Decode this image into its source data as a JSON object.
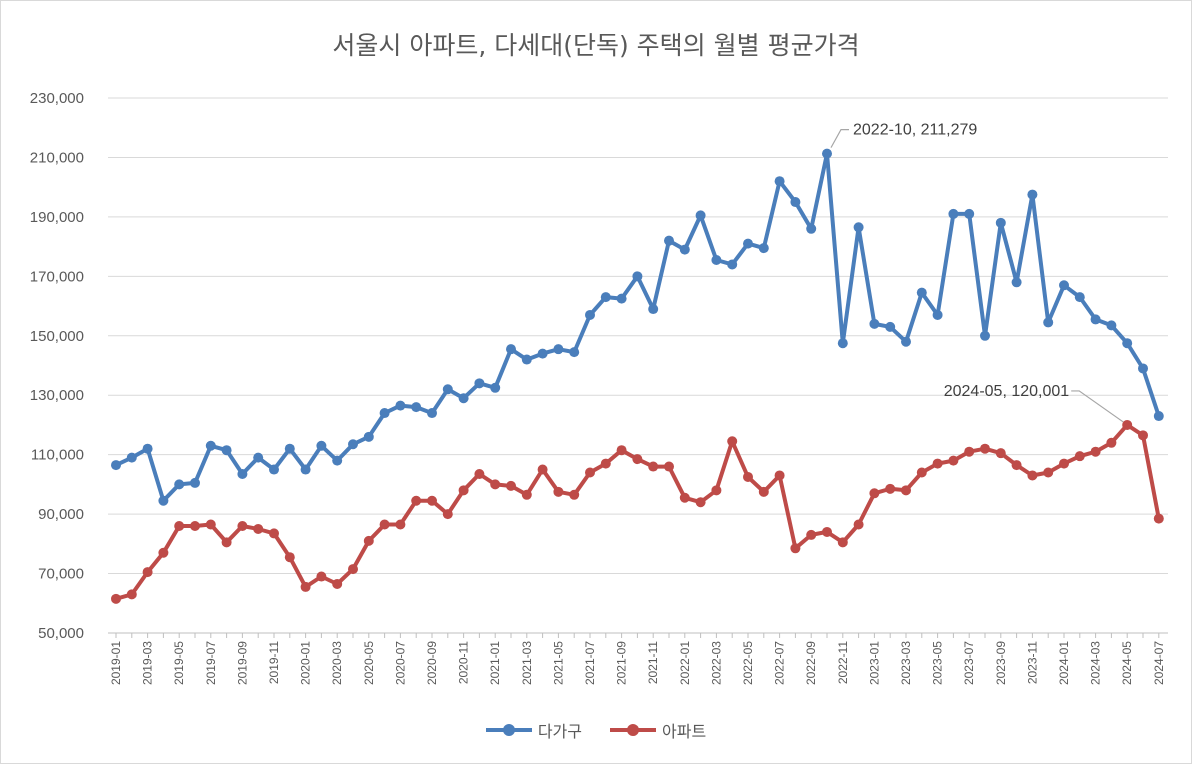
{
  "chart_data": {
    "type": "line",
    "title": "서울시 아파트, 다세대(단독) 주택의 월별 평균가격",
    "xlabel": "",
    "ylabel": "",
    "ylim": [
      50000,
      230000
    ],
    "yticks": [
      "50,000",
      "70,000",
      "90,000",
      "110,000",
      "130,000",
      "150,000",
      "170,000",
      "190,000",
      "210,000",
      "230,000"
    ],
    "ytick_values": [
      50000,
      70000,
      90000,
      110000,
      130000,
      150000,
      170000,
      190000,
      210000,
      230000
    ],
    "grid": true,
    "legend": "bottom",
    "x": [
      "2019-01",
      "2019-02",
      "2019-03",
      "2019-04",
      "2019-05",
      "2019-06",
      "2019-07",
      "2019-08",
      "2019-09",
      "2019-10",
      "2019-11",
      "2019-12",
      "2020-01",
      "2020-02",
      "2020-03",
      "2020-04",
      "2020-05",
      "2020-06",
      "2020-07",
      "2020-08",
      "2020-09",
      "2020-10",
      "2020-11",
      "2020-12",
      "2021-01",
      "2021-02",
      "2021-03",
      "2021-04",
      "2021-05",
      "2021-06",
      "2021-07",
      "2021-08",
      "2021-09",
      "2021-10",
      "2021-11",
      "2021-12",
      "2022-01",
      "2022-02",
      "2022-03",
      "2022-04",
      "2022-05",
      "2022-06",
      "2022-07",
      "2022-08",
      "2022-09",
      "2022-10",
      "2022-11",
      "2022-12",
      "2023-01",
      "2023-02",
      "2023-03",
      "2023-04",
      "2023-05",
      "2023-06",
      "2023-07",
      "2023-08",
      "2023-09",
      "2023-10",
      "2023-11",
      "2023-12",
      "2024-01",
      "2024-02",
      "2024-03",
      "2024-04",
      "2024-05",
      "2024-06",
      "2024-07"
    ],
    "xtick_labels": [
      "2019-01",
      "2019-03",
      "2019-05",
      "2019-07",
      "2019-09",
      "2019-11",
      "2020-01",
      "2020-03",
      "2020-05",
      "2020-07",
      "2020-09",
      "2020-11",
      "2021-01",
      "2021-03",
      "2021-05",
      "2021-07",
      "2021-09",
      "2021-11",
      "2022-01",
      "2022-03",
      "2022-05",
      "2022-07",
      "2022-09",
      "2022-11",
      "2023-01",
      "2023-03",
      "2023-05",
      "2023-07",
      "2023-09",
      "2023-11",
      "2024-01",
      "2024-03",
      "2024-05",
      "2024-07"
    ],
    "series": [
      {
        "name": "다가구",
        "color": "#4a7ebb",
        "values": [
          106500,
          109000,
          112000,
          94500,
          100000,
          100500,
          113000,
          111500,
          103500,
          109000,
          105000,
          112000,
          105000,
          113000,
          108000,
          113500,
          116000,
          124000,
          126500,
          126000,
          124000,
          132000,
          129000,
          134000,
          132500,
          145500,
          142000,
          144000,
          145500,
          144500,
          157000,
          163000,
          162500,
          170000,
          159000,
          182000,
          179000,
          190500,
          175500,
          174000,
          181000,
          179500,
          202000,
          195000,
          186000,
          211279,
          147500,
          186500,
          154000,
          153000,
          148000,
          164500,
          157000,
          191000,
          191000,
          150000,
          188000,
          168000,
          197500,
          154500,
          167000,
          163000,
          155500,
          153500,
          147500,
          139000,
          123000
        ]
      },
      {
        "name": "아파트",
        "color": "#be4b48",
        "values": [
          61500,
          63000,
          70500,
          77000,
          86000,
          86000,
          86500,
          80500,
          86000,
          85000,
          83500,
          75500,
          65500,
          69000,
          66500,
          71500,
          81000,
          86500,
          86500,
          94500,
          94500,
          90000,
          98000,
          103500,
          100000,
          99500,
          96500,
          105000,
          97500,
          96500,
          104000,
          107000,
          111500,
          108500,
          106000,
          106000,
          95500,
          94000,
          98000,
          114500,
          102500,
          97500,
          103000,
          78500,
          83000,
          84000,
          80500,
          86500,
          97000,
          98500,
          98000,
          104000,
          107000,
          108000,
          111000,
          112000,
          110500,
          106500,
          103000,
          104000,
          107000,
          109500,
          111000,
          114000,
          120001,
          116500,
          88500
        ]
      }
    ],
    "annotations": [
      {
        "text": "2022-10, 211,279",
        "series": 0,
        "index": 45
      },
      {
        "text": "2024-05, 120,001",
        "series": 1,
        "index": 64
      }
    ]
  }
}
